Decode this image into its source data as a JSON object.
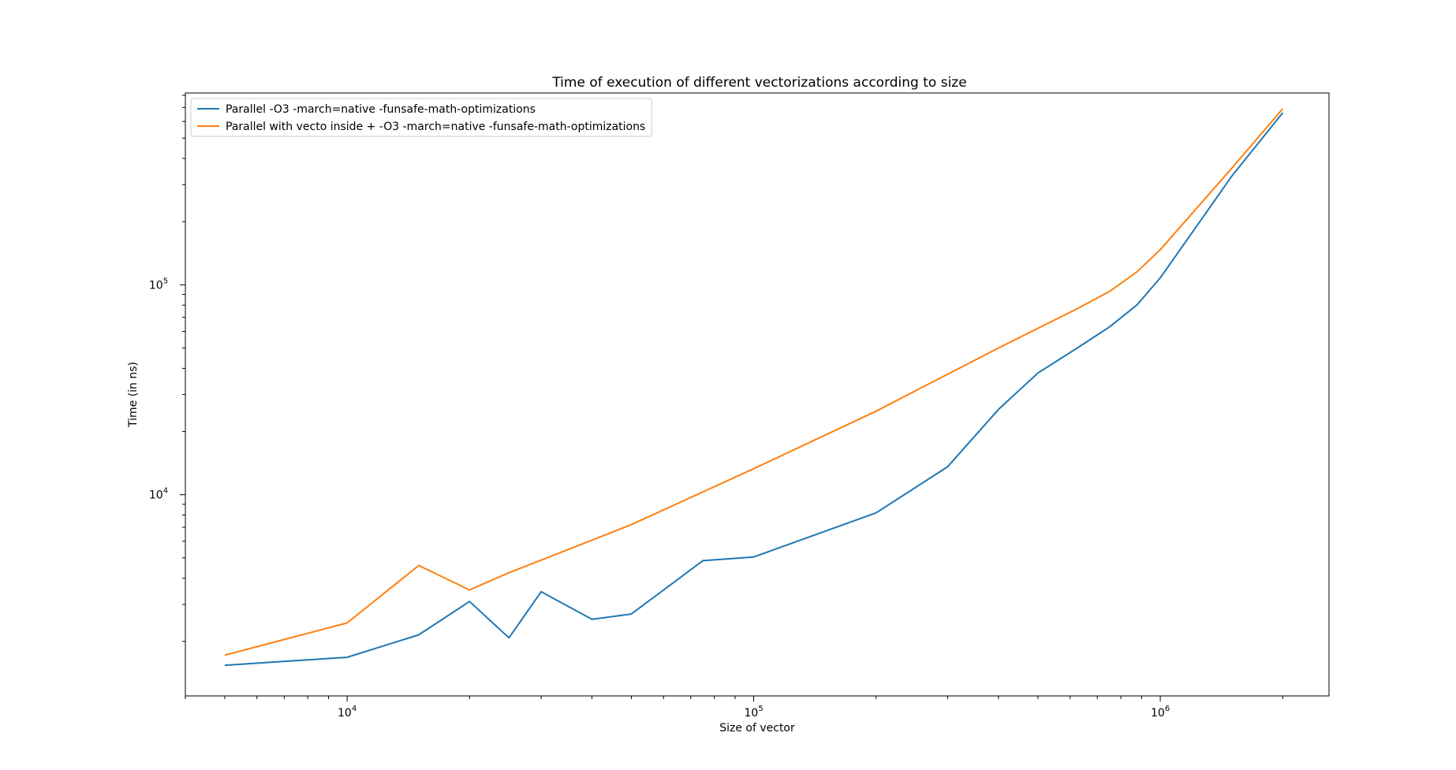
{
  "chart_data": {
    "type": "line",
    "title": "Time of execution of different vectorizations according to size",
    "xlabel": "Size of vector",
    "ylabel": "Time (in ns)",
    "xscale": "log",
    "yscale": "log",
    "xlim": [
      4000,
      2600000
    ],
    "ylim": [
      1100,
      820000
    ],
    "grid": false,
    "legend_position": "top-left",
    "x_major_ticks": [
      {
        "value": 10000,
        "base": "10",
        "exp": "4"
      },
      {
        "value": 100000,
        "base": "10",
        "exp": "5"
      },
      {
        "value": 1000000,
        "base": "10",
        "exp": "6"
      }
    ],
    "y_major_ticks": [
      {
        "value": 10000,
        "base": "10",
        "exp": "4"
      },
      {
        "value": 100000,
        "base": "10",
        "exp": "5"
      }
    ],
    "series": [
      {
        "name": "Parallel -O3 -march=native -funsafe-math-optimizations",
        "color": "#1f77b4",
        "x": [
          5000,
          10000,
          15000,
          20000,
          25000,
          30000,
          40000,
          50000,
          75000,
          100000,
          200000,
          300000,
          400000,
          500000,
          625000,
          750000,
          875000,
          1000000,
          1500000,
          2000000
        ],
        "y": [
          1540,
          1680,
          2150,
          3100,
          2080,
          3450,
          2550,
          2700,
          4850,
          5050,
          8200,
          13600,
          25500,
          38000,
          50000,
          63000,
          80000,
          108000,
          330000,
          660000
        ]
      },
      {
        "name": "Parallel with vecto inside + -O3 -march=native -funsafe-math-optimizations",
        "color": "#ff7f0e",
        "x": [
          5000,
          10000,
          15000,
          20000,
          25000,
          50000,
          100000,
          200000,
          400000,
          625000,
          750000,
          875000,
          1000000,
          1500000,
          2000000
        ],
        "y": [
          1720,
          2450,
          4600,
          3520,
          4250,
          7200,
          13300,
          25000,
          50000,
          77000,
          93000,
          115000,
          147000,
          360000,
          690000
        ]
      }
    ]
  }
}
